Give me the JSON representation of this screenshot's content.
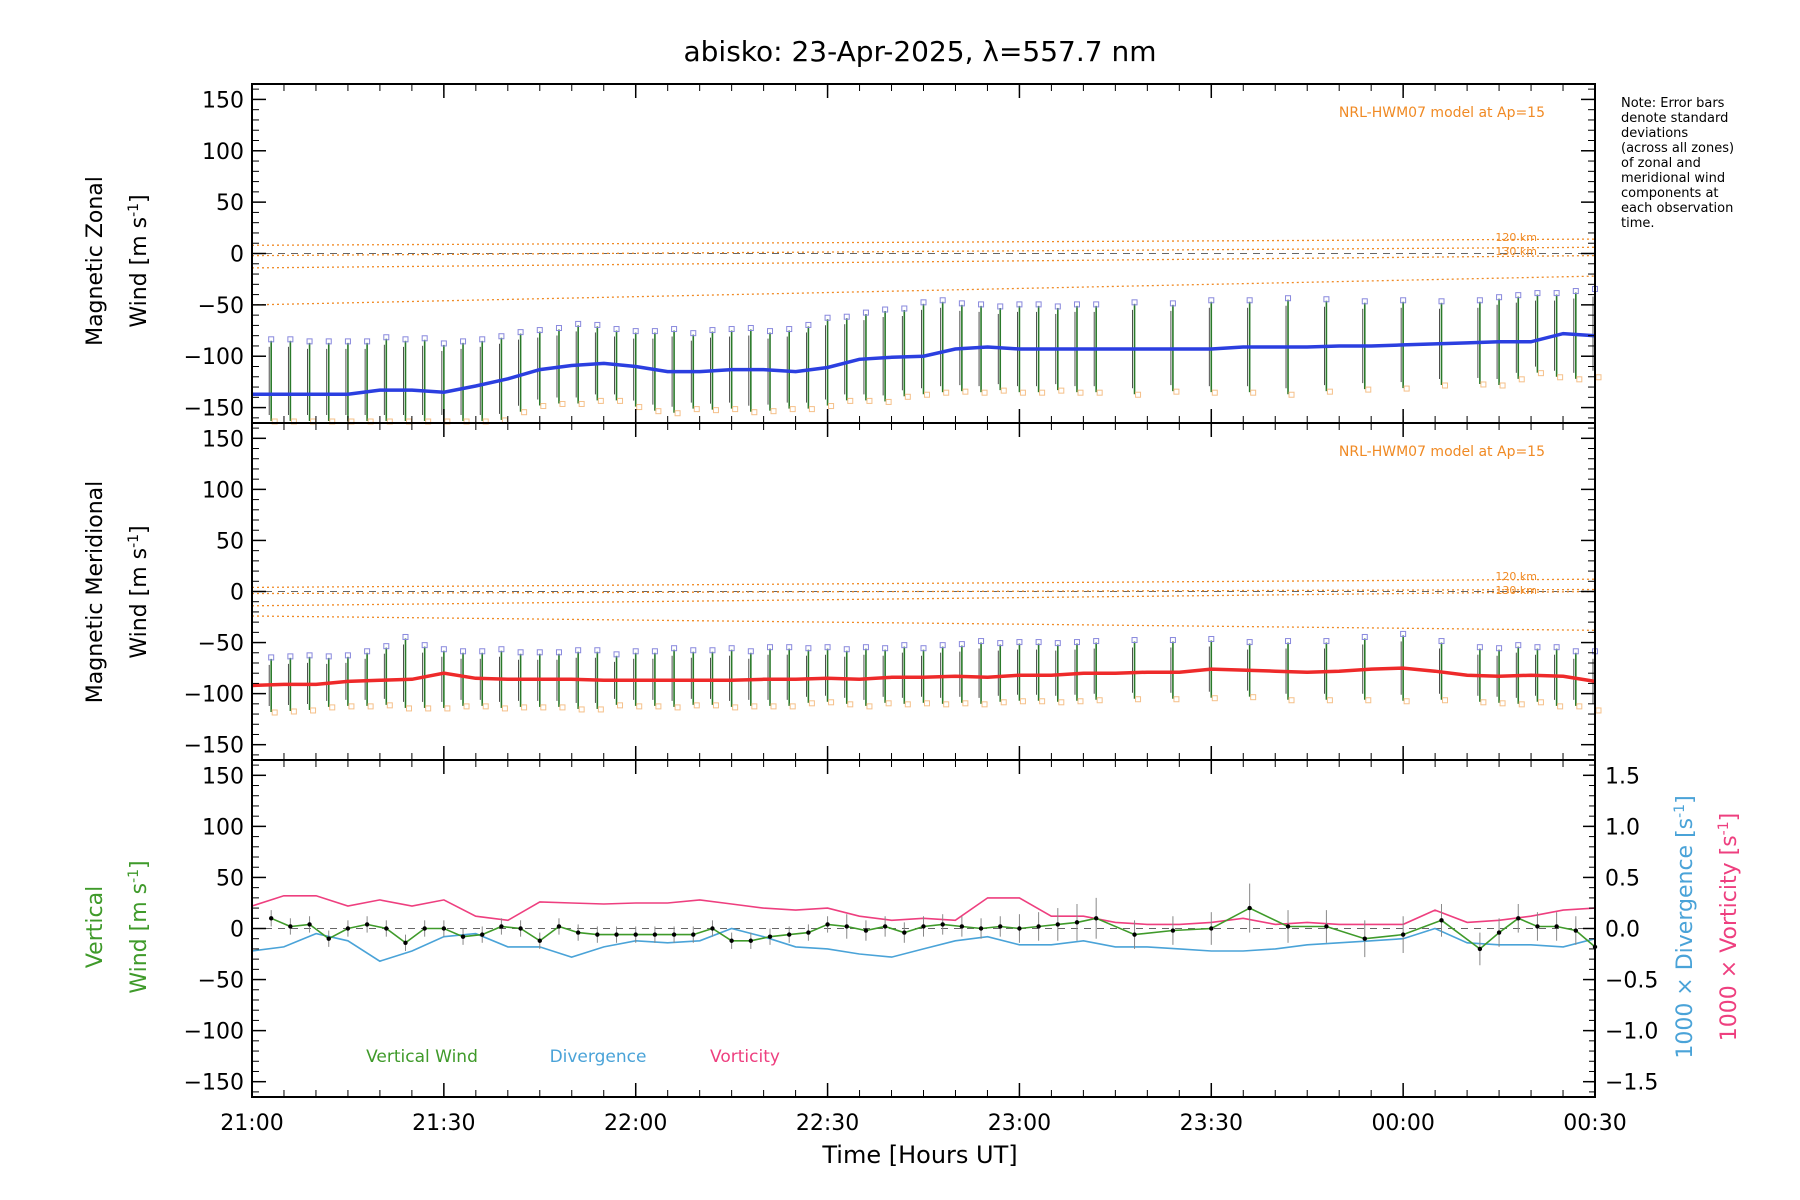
{
  "title": "abisko: 23-Apr-2025, λ=557.7 nm",
  "note_lines": [
    "Note: Error bars",
    "denote standard",
    "deviations",
    "(across all zones)",
    "of zonal and",
    "meridional wind",
    "components at",
    "each observation",
    "time."
  ],
  "colors": {
    "zonal": "#2b3fe0",
    "meridional": "#ee2a2a",
    "model": "#f08a24",
    "vertical": "#3f9a2a",
    "divergence": "#4aa3d8",
    "vorticity": "#ee3f7f",
    "errorbar_green": "#2a7a2a",
    "zone_marker": "#8888dd",
    "zone_marker_light": "#f5c089"
  },
  "xaxis": {
    "label": "Time [Hours UT]",
    "tick_labels": [
      "21:00",
      "21:30",
      "22:00",
      "22:30",
      "23:00",
      "23:30",
      "00:00",
      "00:30"
    ],
    "range_hours": [
      21.0,
      24.5
    ]
  },
  "chart_data": [
    {
      "type": "line",
      "name": "zonal-panel",
      "ylabel_line1": "Magnetic Zonal",
      "ylabel_line2": "Wind [m s",
      "ylabel_sup": "-1",
      "ylabel_close": "]",
      "ylim": [
        -165,
        165
      ],
      "yticks": [
        150,
        100,
        50,
        0,
        -50,
        -100,
        -150
      ],
      "ytick_labels": [
        "150",
        "100",
        "50",
        "0",
        "−50",
        "−100",
        "−150"
      ],
      "model_label": "NRL-HWM07 model at Ap=15",
      "model_alt_labels": [
        "120 km",
        "130 km"
      ],
      "model_lines": [
        {
          "t": [
            21.0,
            24.5
          ],
          "v": [
            8,
            14
          ]
        },
        {
          "t": [
            21.0,
            24.5
          ],
          "v": [
            -2,
            6
          ]
        },
        {
          "t": [
            21.0,
            24.5
          ],
          "v": [
            -14,
            -2
          ]
        },
        {
          "t": [
            21.0,
            24.5
          ],
          "v": [
            -50,
            -22
          ]
        }
      ],
      "series": [
        {
          "t": [
            21.0,
            21.083,
            21.167,
            21.25,
            21.333,
            21.417,
            21.5,
            21.583,
            21.667,
            21.75,
            21.833,
            21.917,
            22.0,
            22.083,
            22.167,
            22.25,
            22.333,
            22.417,
            22.5,
            22.583,
            22.667,
            22.75,
            22.833,
            22.917,
            23.0,
            23.083,
            23.167,
            23.25,
            23.333,
            23.417,
            23.5,
            23.583,
            23.667,
            23.75,
            23.833,
            23.917,
            24.0,
            24.083,
            24.167,
            24.25,
            24.333,
            24.417,
            24.5
          ],
          "v": [
            -137,
            -137,
            -137,
            -137,
            -133,
            -133,
            -135,
            -129,
            -122,
            -113,
            -109,
            -107,
            -110,
            -115,
            -115,
            -113,
            -113,
            -115,
            -111,
            -103,
            -101,
            -100,
            -93,
            -91,
            -93,
            -93,
            -93,
            -93,
            -93,
            -93,
            -93,
            -91,
            -91,
            -91,
            -90,
            -90,
            -89,
            -88,
            -87,
            -86,
            -86,
            -78,
            -80
          ]
        }
      ],
      "errorbars": {
        "t": [
          21.05,
          21.1,
          21.15,
          21.2,
          21.25,
          21.3,
          21.35,
          21.4,
          21.45,
          21.5,
          21.55,
          21.6,
          21.65,
          21.7,
          21.75,
          21.8,
          21.85,
          21.9,
          21.95,
          22.0,
          22.05,
          22.1,
          22.15,
          22.2,
          22.25,
          22.3,
          22.35,
          22.4,
          22.45,
          22.5,
          22.55,
          22.6,
          22.65,
          22.7,
          22.75,
          22.8,
          22.85,
          22.9,
          22.95,
          23.0,
          23.05,
          23.1,
          23.15,
          23.2,
          23.3,
          23.4,
          23.5,
          23.6,
          23.7,
          23.8,
          23.9,
          24.0,
          24.1,
          24.2,
          24.25,
          24.3,
          24.35,
          24.4,
          24.45,
          24.5
        ],
        "center": [
          -137,
          -137,
          -137,
          -137,
          -137,
          -135,
          -133,
          -133,
          -134,
          -135,
          -131,
          -127,
          -122,
          -116,
          -112,
          -110,
          -108,
          -107,
          -109,
          -113,
          -115,
          -115,
          -115,
          -114,
          -113,
          -114,
          -115,
          -113,
          -111,
          -106,
          -103,
          -101,
          -100,
          -97,
          -93,
          -91,
          -92,
          -93,
          -93,
          -93,
          -93,
          -93,
          -93,
          -93,
          -93,
          -92,
          -91,
          -91,
          -91,
          -90,
          -90,
          -89,
          -88,
          -87,
          -86,
          -82,
          -78,
          -80,
          -80,
          -78
        ],
        "half": [
          52,
          52,
          50,
          50,
          50,
          48,
          50,
          48,
          50,
          46,
          44,
          42,
          40,
          38,
          36,
          36,
          38,
          36,
          34,
          36,
          38,
          40,
          36,
          38,
          38,
          40,
          38,
          38,
          40,
          42,
          40,
          42,
          44,
          42,
          44,
          44,
          42,
          42,
          40,
          42,
          42,
          40,
          42,
          42,
          44,
          42,
          44,
          44,
          46,
          44,
          42,
          42,
          40,
          40,
          42,
          40,
          38,
          40,
          42,
          42
        ]
      }
    },
    {
      "type": "line",
      "name": "meridional-panel",
      "ylabel_line1": "Magnetic Meridional",
      "ylabel_line2": "Wind [m s",
      "ylabel_sup": "-1",
      "ylabel_close": "]",
      "ylim": [
        -165,
        165
      ],
      "yticks": [
        150,
        100,
        50,
        0,
        -50,
        -100,
        -150
      ],
      "ytick_labels": [
        "150",
        "100",
        "50",
        "0",
        "−50",
        "−100",
        "−150"
      ],
      "model_label": "NRL-HWM07 model at Ap=15",
      "model_alt_labels": [
        "120 km",
        "130 km"
      ],
      "model_lines": [
        {
          "t": [
            21.0,
            24.5
          ],
          "v": [
            4,
            12
          ]
        },
        {
          "t": [
            21.0,
            24.5
          ],
          "v": [
            -2,
            2
          ]
        },
        {
          "t": [
            21.0,
            24.5
          ],
          "v": [
            -14,
            0
          ]
        },
        {
          "t": [
            21.0,
            24.5
          ],
          "v": [
            -24,
            -38
          ]
        }
      ],
      "series": [
        {
          "t": [
            21.0,
            21.083,
            21.167,
            21.25,
            21.333,
            21.417,
            21.5,
            21.583,
            21.667,
            21.75,
            21.833,
            21.917,
            22.0,
            22.083,
            22.167,
            22.25,
            22.333,
            22.417,
            22.5,
            22.583,
            22.667,
            22.75,
            22.833,
            22.917,
            23.0,
            23.083,
            23.167,
            23.25,
            23.333,
            23.417,
            23.5,
            23.583,
            23.667,
            23.75,
            23.833,
            23.917,
            24.0,
            24.083,
            24.167,
            24.25,
            24.333,
            24.417,
            24.5
          ],
          "v": [
            -92,
            -91,
            -91,
            -88,
            -87,
            -86,
            -80,
            -85,
            -86,
            -86,
            -86,
            -87,
            -87,
            -87,
            -87,
            -87,
            -86,
            -86,
            -85,
            -86,
            -84,
            -84,
            -83,
            -84,
            -82,
            -82,
            -80,
            -80,
            -79,
            -79,
            -76,
            -77,
            -78,
            -79,
            -78,
            -76,
            -75,
            -78,
            -82,
            -83,
            -82,
            -83,
            -88
          ]
        }
      ],
      "errorbars": {
        "t": [
          21.05,
          21.1,
          21.15,
          21.2,
          21.25,
          21.3,
          21.35,
          21.4,
          21.45,
          21.5,
          21.55,
          21.6,
          21.65,
          21.7,
          21.75,
          21.8,
          21.85,
          21.9,
          21.95,
          22.0,
          22.05,
          22.1,
          22.15,
          22.2,
          22.25,
          22.3,
          22.35,
          22.4,
          22.45,
          22.5,
          22.55,
          22.6,
          22.65,
          22.7,
          22.75,
          22.8,
          22.85,
          22.9,
          22.95,
          23.0,
          23.05,
          23.1,
          23.15,
          23.2,
          23.3,
          23.4,
          23.5,
          23.6,
          23.7,
          23.8,
          23.9,
          24.0,
          24.1,
          24.2,
          24.25,
          24.3,
          24.35,
          24.4,
          24.45,
          24.5
        ],
        "center": [
          -92,
          -91,
          -90,
          -89,
          -88,
          -86,
          -83,
          -80,
          -84,
          -86,
          -86,
          -86,
          -86,
          -87,
          -87,
          -87,
          -87,
          -87,
          -87,
          -86,
          -86,
          -85,
          -85,
          -85,
          -85,
          -86,
          -84,
          -84,
          -83,
          -82,
          -84,
          -84,
          -83,
          -82,
          -83,
          -82,
          -81,
          -80,
          -80,
          -79,
          -79,
          -80,
          -79,
          -78,
          -77,
          -77,
          -76,
          -77,
          -78,
          -78,
          -76,
          -75,
          -78,
          -82,
          -83,
          -82,
          -82,
          -84,
          -86,
          -88
        ],
        "half": [
          26,
          26,
          26,
          24,
          24,
          26,
          28,
          34,
          30,
          28,
          26,
          26,
          28,
          26,
          26,
          26,
          28,
          28,
          24,
          26,
          26,
          28,
          26,
          26,
          28,
          26,
          28,
          28,
          26,
          26,
          26,
          28,
          26,
          28,
          26,
          28,
          28,
          30,
          28,
          28,
          28,
          28,
          28,
          28,
          28,
          28,
          28,
          26,
          28,
          28,
          30,
          32,
          28,
          26,
          26,
          28,
          26,
          28,
          26,
          28
        ]
      }
    },
    {
      "type": "line",
      "name": "vertical-panel",
      "ylabel_line1": "Vertical",
      "ylabel_line2": "Wind [m s",
      "ylabel_sup": "-1",
      "ylabel_close": "]",
      "ylim": [
        -165,
        165
      ],
      "yticks": [
        150,
        100,
        50,
        0,
        -50,
        -100,
        -150
      ],
      "ytick_labels": [
        "150",
        "100",
        "50",
        "0",
        "−50",
        "−100",
        "−150"
      ],
      "y2lim": [
        -1.65,
        1.65
      ],
      "y2ticks": [
        1.5,
        1.0,
        0.5,
        0.0,
        -0.5,
        -1.0,
        -1.5
      ],
      "y2tick_labels": [
        "1.5",
        "1.0",
        "0.5",
        "0.0",
        "−0.5",
        "−1.0",
        "−1.5"
      ],
      "y2label_div": "1000 × Divergence [s",
      "y2label_vort": "1000 × Vorticity [s",
      "y2label_sup": "-1",
      "y2label_close": "]",
      "legend": [
        "Vertical Wind",
        "Divergence",
        "Vorticity"
      ],
      "vertical_wind": {
        "t": [
          21.05,
          21.1,
          21.15,
          21.2,
          21.25,
          21.3,
          21.35,
          21.4,
          21.45,
          21.5,
          21.55,
          21.6,
          21.65,
          21.7,
          21.75,
          21.8,
          21.85,
          21.9,
          21.95,
          22.0,
          22.05,
          22.1,
          22.15,
          22.2,
          22.25,
          22.3,
          22.35,
          22.4,
          22.45,
          22.5,
          22.55,
          22.6,
          22.65,
          22.7,
          22.75,
          22.8,
          22.85,
          22.9,
          22.95,
          23.0,
          23.05,
          23.1,
          23.15,
          23.2,
          23.3,
          23.4,
          23.5,
          23.6,
          23.7,
          23.8,
          23.9,
          24.0,
          24.1,
          24.2,
          24.25,
          24.3,
          24.35,
          24.4,
          24.45,
          24.5
        ],
        "v": [
          10,
          2,
          4,
          -10,
          0,
          4,
          0,
          -14,
          0,
          0,
          -8,
          -6,
          2,
          0,
          -12,
          2,
          -4,
          -6,
          -6,
          -6,
          -6,
          -6,
          -6,
          0,
          -12,
          -12,
          -8,
          -6,
          -4,
          4,
          2,
          -2,
          2,
          -4,
          2,
          4,
          2,
          0,
          2,
          0,
          2,
          4,
          6,
          10,
          -6,
          -2,
          0,
          20,
          2,
          2,
          -10,
          -6,
          8,
          -20,
          -4,
          10,
          2,
          2,
          -2,
          -18
        ],
        "half": [
          8,
          8,
          8,
          8,
          8,
          8,
          8,
          8,
          8,
          8,
          8,
          8,
          8,
          8,
          8,
          8,
          8,
          8,
          8,
          8,
          8,
          8,
          8,
          8,
          8,
          8,
          8,
          8,
          8,
          8,
          12,
          10,
          10,
          10,
          10,
          10,
          10,
          10,
          10,
          14,
          14,
          16,
          18,
          20,
          14,
          14,
          16,
          24,
          16,
          16,
          18,
          18,
          16,
          16,
          14,
          14,
          14,
          14,
          14,
          14
        ]
      },
      "divergence": {
        "t": [
          21.0,
          21.083,
          21.167,
          21.25,
          21.333,
          21.417,
          21.5,
          21.583,
          21.667,
          21.75,
          21.833,
          21.917,
          22.0,
          22.083,
          22.167,
          22.25,
          22.333,
          22.417,
          22.5,
          22.583,
          22.667,
          22.75,
          22.833,
          22.917,
          23.0,
          23.083,
          23.167,
          23.25,
          23.333,
          23.417,
          23.5,
          23.583,
          23.667,
          23.75,
          23.833,
          23.917,
          24.0,
          24.083,
          24.167,
          24.25,
          24.333,
          24.417,
          24.5
        ],
        "v": [
          -0.22,
          -0.18,
          -0.05,
          -0.12,
          -0.32,
          -0.22,
          -0.08,
          -0.05,
          -0.18,
          -0.18,
          -0.28,
          -0.18,
          -0.12,
          -0.14,
          -0.12,
          0.0,
          -0.08,
          -0.18,
          -0.2,
          -0.25,
          -0.28,
          -0.2,
          -0.12,
          -0.08,
          -0.16,
          -0.16,
          -0.12,
          -0.18,
          -0.18,
          -0.2,
          -0.22,
          -0.22,
          -0.2,
          -0.16,
          -0.14,
          -0.12,
          -0.1,
          0.0,
          -0.14,
          -0.16,
          -0.16,
          -0.18,
          -0.1
        ]
      },
      "vorticity": {
        "t": [
          21.0,
          21.083,
          21.167,
          21.25,
          21.333,
          21.417,
          21.5,
          21.583,
          21.667,
          21.75,
          21.833,
          21.917,
          22.0,
          22.083,
          22.167,
          22.25,
          22.333,
          22.417,
          22.5,
          22.583,
          22.667,
          22.75,
          22.833,
          22.917,
          23.0,
          23.083,
          23.167,
          23.25,
          23.333,
          23.417,
          23.5,
          23.583,
          23.667,
          23.75,
          23.833,
          23.917,
          24.0,
          24.083,
          24.167,
          24.25,
          24.333,
          24.417,
          24.5
        ],
        "v": [
          0.22,
          0.32,
          0.32,
          0.22,
          0.28,
          0.22,
          0.28,
          0.12,
          0.08,
          0.26,
          0.25,
          0.24,
          0.25,
          0.25,
          0.28,
          0.24,
          0.2,
          0.18,
          0.2,
          0.12,
          0.08,
          0.1,
          0.08,
          0.3,
          0.3,
          0.12,
          0.12,
          0.06,
          0.04,
          0.04,
          0.06,
          0.1,
          0.04,
          0.06,
          0.04,
          0.04,
          0.04,
          0.18,
          0.06,
          0.08,
          0.12,
          0.18,
          0.2
        ]
      }
    }
  ]
}
